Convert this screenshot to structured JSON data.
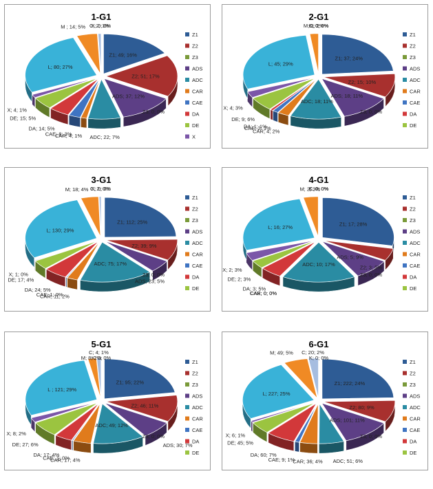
{
  "legend_colors": {
    "Z1": "#2e5c95",
    "Z2": "#a8302e",
    "Z3": "#7a9a3a",
    "ADS": "#5d3f86",
    "ADC": "#2a8ca3",
    "CAR": "#e07b1c",
    "CAE": "#3f74c2",
    "DA": "#d2383a",
    "DE": "#9bc440",
    "X": "#7b56a8",
    "L": "#39b2d8",
    "M": "#f08a24",
    "C": "#a6bde0",
    "K": "#eaeaea"
  },
  "chart_data": [
    {
      "type": "pie",
      "title": "1-G1",
      "legend": [
        "Z1",
        "Z2",
        "Z3",
        "ADS",
        "ADC",
        "CAR",
        "CAE",
        "DA",
        "DE",
        "X"
      ],
      "slices": [
        {
          "name": "Z1",
          "value": 49,
          "percent": "16%",
          "label": "Z1; 49; 16%"
        },
        {
          "name": "Z2",
          "value": 51,
          "percent": "17%",
          "label": "Z2; 51; 17%"
        },
        {
          "name": "Z3",
          "value": 0,
          "percent": "0%",
          "label": "Z3; 0; 0%"
        },
        {
          "name": "ADS",
          "value": 37,
          "percent": "12%",
          "label": "ADS; 37; 12%"
        },
        {
          "name": "ADC",
          "value": 22,
          "percent": "7%",
          "label": "ADC; 22; 7%"
        },
        {
          "name": "CAR",
          "value": 4,
          "percent": "1%",
          "label": "CAR; 4; 1%"
        },
        {
          "name": "CAE",
          "value": 8,
          "percent": "3%",
          "label": "CAE; 8; 3%"
        },
        {
          "name": "DA",
          "value": 14,
          "percent": "5%",
          "label": "DA; 14; 5%"
        },
        {
          "name": "DE",
          "value": 15,
          "percent": "5%",
          "label": "DE; 15; 5%"
        },
        {
          "name": "X",
          "value": 4,
          "percent": "1%",
          "label": "X; 4; 1%"
        },
        {
          "name": "L",
          "value": 80,
          "percent": "27%",
          "label": "L; 80; 27%"
        },
        {
          "name": "M",
          "value": 14,
          "percent": "5%",
          "label": "M ; 14; 5%"
        },
        {
          "name": "C",
          "value": 2,
          "percent": "1%",
          "label": "C; 2; 1%"
        },
        {
          "name": "K",
          "value": 0,
          "percent": "0%",
          "label": "K; 0; 0%"
        }
      ]
    },
    {
      "type": "pie",
      "title": "2-G1",
      "legend": [
        "Z1",
        "Z2",
        "Z3",
        "ADS",
        "ADC",
        "CAR",
        "CAE",
        "DA",
        "DE"
      ],
      "slices": [
        {
          "name": "Z1",
          "value": 37,
          "percent": "24%",
          "label": "Z1; 37; 24%"
        },
        {
          "name": "Z2",
          "value": 15,
          "percent": "10%",
          "label": "Z2; 15; 10%"
        },
        {
          "name": "Z3",
          "value": 0,
          "percent": "0%",
          "label": "Z3; 0; 0%"
        },
        {
          "name": "ADS",
          "value": 18,
          "percent": "11%",
          "label": "ADS; 18; 11%"
        },
        {
          "name": "ADC",
          "value": 18,
          "percent": "11%",
          "label": "ADC; 18; 11%"
        },
        {
          "name": "CAR",
          "value": 4,
          "percent": "2%",
          "label": "CAR; 4; 2%"
        },
        {
          "name": "CAE",
          "value": 2,
          "percent": "1%",
          "label": "CAE; 2; 1%"
        },
        {
          "name": "DA",
          "value": 1,
          "percent": "1%",
          "label": "DA; 1; 1%"
        },
        {
          "name": "DE",
          "value": 9,
          "percent": "6%",
          "label": "DE; 9; 6%"
        },
        {
          "name": "X",
          "value": 4,
          "percent": "3%",
          "label": "X; 4; 3%"
        },
        {
          "name": "L",
          "value": 45,
          "percent": "29%",
          "label": "L; 45; 29%"
        },
        {
          "name": "M",
          "value": 3,
          "percent": "2%",
          "label": "M; 3; 2%"
        },
        {
          "name": "C",
          "value": 0,
          "percent": "0%",
          "label": "C; 0; 0%"
        },
        {
          "name": "K",
          "value": 0,
          "percent": "0%",
          "label": "K; 0; 0%"
        }
      ]
    },
    {
      "type": "pie",
      "title": "3-G1",
      "legend": [
        "Z1",
        "Z2",
        "Z3",
        "ADS",
        "ADC",
        "CAR",
        "CAE",
        "DA",
        "DE"
      ],
      "slices": [
        {
          "name": "Z1",
          "value": 112,
          "percent": "25%",
          "label": "Z1; 112; 25%"
        },
        {
          "name": "Z2",
          "value": 39,
          "percent": "9%",
          "label": "Z2; 39; 9%"
        },
        {
          "name": "Z3",
          "value": 0,
          "percent": "0%",
          "label": "Z3; 0; 0%"
        },
        {
          "name": "ADS",
          "value": 23,
          "percent": "5%",
          "label": "ADS; 23; 5%"
        },
        {
          "name": "ADC",
          "value": 75,
          "percent": "17%",
          "label": "ADC; 75; 17%"
        },
        {
          "name": "CAR",
          "value": 11,
          "percent": "2%",
          "label": "CAR; 11; 2%"
        },
        {
          "name": "CAE",
          "value": 1,
          "percent": "0%",
          "label": "CAE; 1; 0%"
        },
        {
          "name": "DA",
          "value": 24,
          "percent": "5%",
          "label": "DA; 24; 5%"
        },
        {
          "name": "DE",
          "value": 17,
          "percent": "4%",
          "label": "DE; 17; 4%"
        },
        {
          "name": "X",
          "value": 1,
          "percent": "0%",
          "label": "X; 1; 0%"
        },
        {
          "name": "L",
          "value": 130,
          "percent": "29%",
          "label": "L; 130; 29%"
        },
        {
          "name": "M",
          "value": 18,
          "percent": "4%",
          "label": "M; 18; 4%"
        },
        {
          "name": "C",
          "value": 2,
          "percent": "0%",
          "label": "C; 2; 0%"
        },
        {
          "name": "K",
          "value": 0,
          "percent": "0%",
          "label": "K; 0; 0%"
        }
      ]
    },
    {
      "type": "pie",
      "title": "4-G1",
      "legend": [
        "Z1",
        "Z2",
        "Z3",
        "ADS",
        "ADC",
        "CAR",
        "CAE",
        "DA",
        "DE"
      ],
      "slices": [
        {
          "name": "Z1",
          "value": 17,
          "percent": "28%",
          "label": "Z1; 17; 28%"
        },
        {
          "name": "Z2",
          "value": 3,
          "percent": "5%",
          "label": "Z2; 3; 5%"
        },
        {
          "name": "Z3",
          "value": 0,
          "percent": "0%",
          "label": "Z3; 0; 0%"
        },
        {
          "name": "ADS",
          "value": 5,
          "percent": "9%",
          "label": "ADS; 5; 9%"
        },
        {
          "name": "ADC",
          "value": 10,
          "percent": "17%",
          "label": "ADC; 10; 17%"
        },
        {
          "name": "CAR",
          "value": 0,
          "percent": "0%",
          "label": "CAR; 0; 0%"
        },
        {
          "name": "CAE",
          "value": 0,
          "percent": "0%",
          "label": "CAE; 0; 0%"
        },
        {
          "name": "DA",
          "value": 3,
          "percent": "5%",
          "label": "DA; 3; 5%"
        },
        {
          "name": "DE",
          "value": 2,
          "percent": "3%",
          "label": "DE; 2; 3%"
        },
        {
          "name": "X",
          "value": 2,
          "percent": "3%",
          "label": "X; 2; 3%"
        },
        {
          "name": "L",
          "value": 16,
          "percent": "27%",
          "label": "L; 16; 27%"
        },
        {
          "name": "M",
          "value": 2,
          "percent": "3%",
          "label": "M; 2; 3%"
        },
        {
          "name": "C",
          "value": 0,
          "percent": "0%",
          "label": "C; 0; 0%"
        },
        {
          "name": "K",
          "value": 0,
          "percent": "0%",
          "label": "K; 0; 0%"
        }
      ]
    },
    {
      "type": "pie",
      "title": "5-G1",
      "legend": [
        "Z1",
        "Z2",
        "Z3",
        "ADS",
        "ADC",
        "CAR",
        "CAE",
        "DA",
        "DE"
      ],
      "slices": [
        {
          "name": "Z1",
          "value": 95,
          "percent": "22%",
          "label": "Z1; 95; 22%"
        },
        {
          "name": "Z2",
          "value": 46,
          "percent": "11%",
          "label": "Z2; 46; 11%"
        },
        {
          "name": "Z3",
          "value": 0,
          "percent": "0%",
          "label": "Z3; 0; 0%"
        },
        {
          "name": "ADS",
          "value": 30,
          "percent": "7%",
          "label": "ADS; 30; 7%"
        },
        {
          "name": "ADC",
          "value": 49,
          "percent": "12%",
          "label": "ADC; 49; 12%"
        },
        {
          "name": "CAR",
          "value": 17,
          "percent": "4%",
          "label": "CAR; 17; 4%"
        },
        {
          "name": "CAE",
          "value": 1,
          "percent": "0%",
          "label": "CAE; 1; 0%"
        },
        {
          "name": "DA",
          "value": 17,
          "percent": "4%",
          "label": "DA; 17; 4%"
        },
        {
          "name": "DE",
          "value": 27,
          "percent": "6%",
          "label": "DE; 27; 6%"
        },
        {
          "name": "X",
          "value": 8,
          "percent": "2%",
          "label": "X; 8; 2%"
        },
        {
          "name": "L",
          "value": 121,
          "percent": "29%",
          "label": "L ; 121; 29%"
        },
        {
          "name": "M",
          "value": 8,
          "percent": "2%",
          "label": "M; 8; 2%"
        },
        {
          "name": "C",
          "value": 4,
          "percent": "1%",
          "label": "C; 4; 1%"
        },
        {
          "name": "K",
          "value": 0,
          "percent": "0%",
          "label": "K; 0; 0%"
        }
      ]
    },
    {
      "type": "pie",
      "title": "6-G1",
      "legend": [
        "Z1",
        "Z2",
        "Z3",
        "ADS",
        "ADC",
        "CAR",
        "CAE",
        "DA",
        "DE"
      ],
      "slices": [
        {
          "name": "Z1",
          "value": 222,
          "percent": "24%",
          "label": "Z1; 222; 24%"
        },
        {
          "name": "Z2",
          "value": 80,
          "percent": "9%",
          "label": "Z2; 80; 9%"
        },
        {
          "name": "Z3",
          "value": 0,
          "percent": "0%",
          "label": "Z3; 0; 0%"
        },
        {
          "name": "ADS",
          "value": 101,
          "percent": "11%",
          "label": "ADS; 101; 11%"
        },
        {
          "name": "ADC",
          "value": 51,
          "percent": "6%",
          "label": "ADC; 51; 6%"
        },
        {
          "name": "CAR",
          "value": 36,
          "percent": "4%",
          "label": "CAR; 36; 4%"
        },
        {
          "name": "CAE",
          "value": 9,
          "percent": "1%",
          "label": "CAE; 9; 1%"
        },
        {
          "name": "DA",
          "value": 60,
          "percent": "7%",
          "label": "DA; 60; 7%"
        },
        {
          "name": "DE",
          "value": 45,
          "percent": "5%",
          "label": "DE; 45; 5%"
        },
        {
          "name": "X",
          "value": 6,
          "percent": "1%",
          "label": "X; 6; 1%"
        },
        {
          "name": "L",
          "value": 227,
          "percent": "25%",
          "label": "L; 227; 25%"
        },
        {
          "name": "M",
          "value": 49,
          "percent": "5%",
          "label": "M; 49; 5%"
        },
        {
          "name": "C",
          "value": 20,
          "percent": "2%",
          "label": "C; 20; 2%"
        },
        {
          "name": "K",
          "value": 0,
          "percent": "0%",
          "label": "K; 0; 0%"
        }
      ]
    }
  ]
}
